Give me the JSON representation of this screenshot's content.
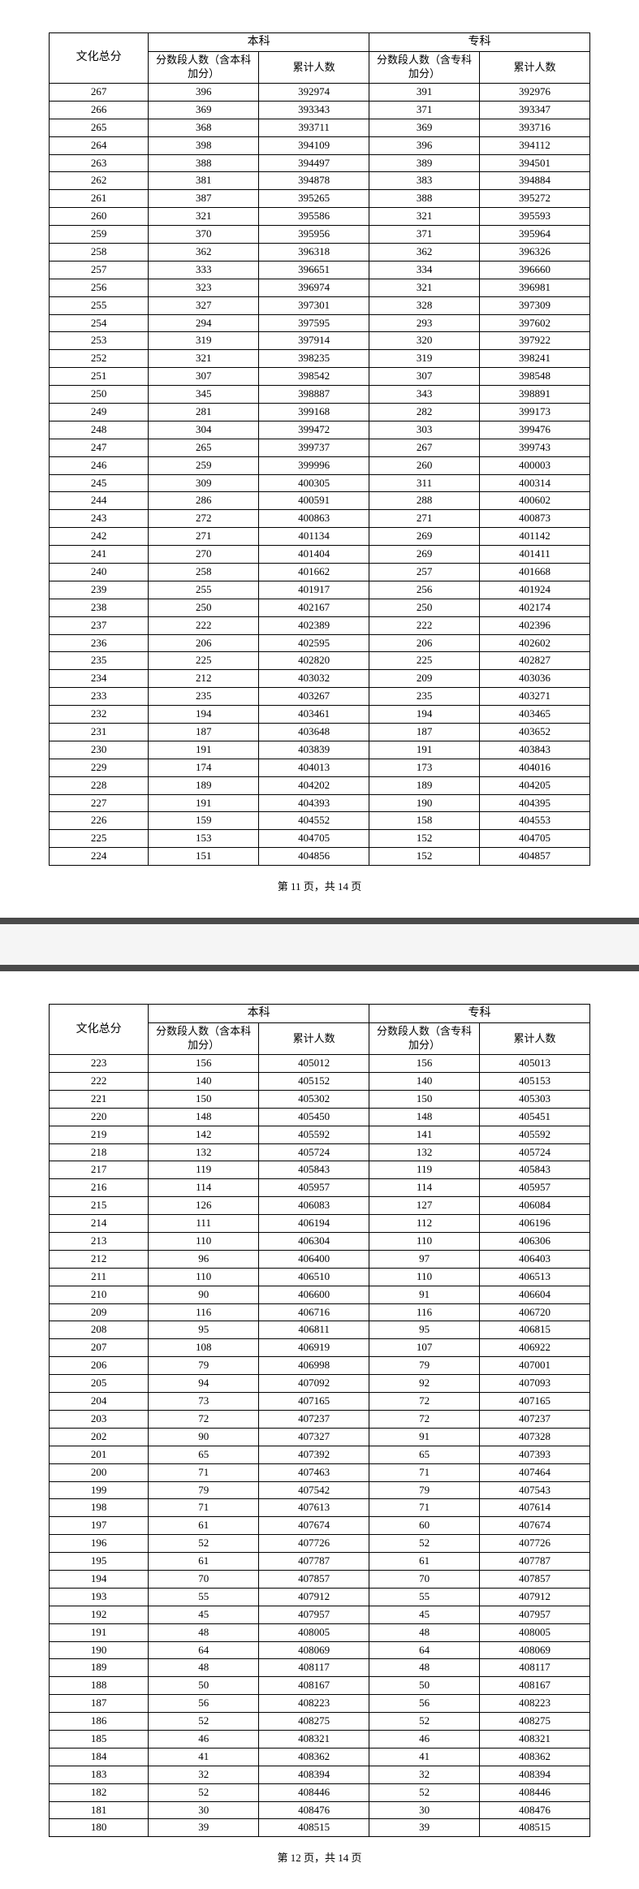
{
  "headers": {
    "score": "文化总分",
    "benke": "本科",
    "zhuanke": "专科",
    "segment_benke": "分数段人数（含本科加分）",
    "segment_zhuanke": "分数段人数（含专科加分）",
    "cumulative": "累计人数"
  },
  "page11": {
    "footer": "第 11 页，共 14 页",
    "rows": [
      [
        267,
        396,
        392974,
        391,
        392976
      ],
      [
        266,
        369,
        393343,
        371,
        393347
      ],
      [
        265,
        368,
        393711,
        369,
        393716
      ],
      [
        264,
        398,
        394109,
        396,
        394112
      ],
      [
        263,
        388,
        394497,
        389,
        394501
      ],
      [
        262,
        381,
        394878,
        383,
        394884
      ],
      [
        261,
        387,
        395265,
        388,
        395272
      ],
      [
        260,
        321,
        395586,
        321,
        395593
      ],
      [
        259,
        370,
        395956,
        371,
        395964
      ],
      [
        258,
        362,
        396318,
        362,
        396326
      ],
      [
        257,
        333,
        396651,
        334,
        396660
      ],
      [
        256,
        323,
        396974,
        321,
        396981
      ],
      [
        255,
        327,
        397301,
        328,
        397309
      ],
      [
        254,
        294,
        397595,
        293,
        397602
      ],
      [
        253,
        319,
        397914,
        320,
        397922
      ],
      [
        252,
        321,
        398235,
        319,
        398241
      ],
      [
        251,
        307,
        398542,
        307,
        398548
      ],
      [
        250,
        345,
        398887,
        343,
        398891
      ],
      [
        249,
        281,
        399168,
        282,
        399173
      ],
      [
        248,
        304,
        399472,
        303,
        399476
      ],
      [
        247,
        265,
        399737,
        267,
        399743
      ],
      [
        246,
        259,
        399996,
        260,
        400003
      ],
      [
        245,
        309,
        400305,
        311,
        400314
      ],
      [
        244,
        286,
        400591,
        288,
        400602
      ],
      [
        243,
        272,
        400863,
        271,
        400873
      ],
      [
        242,
        271,
        401134,
        269,
        401142
      ],
      [
        241,
        270,
        401404,
        269,
        401411
      ],
      [
        240,
        258,
        401662,
        257,
        401668
      ],
      [
        239,
        255,
        401917,
        256,
        401924
      ],
      [
        238,
        250,
        402167,
        250,
        402174
      ],
      [
        237,
        222,
        402389,
        222,
        402396
      ],
      [
        236,
        206,
        402595,
        206,
        402602
      ],
      [
        235,
        225,
        402820,
        225,
        402827
      ],
      [
        234,
        212,
        403032,
        209,
        403036
      ],
      [
        233,
        235,
        403267,
        235,
        403271
      ],
      [
        232,
        194,
        403461,
        194,
        403465
      ],
      [
        231,
        187,
        403648,
        187,
        403652
      ],
      [
        230,
        191,
        403839,
        191,
        403843
      ],
      [
        229,
        174,
        404013,
        173,
        404016
      ],
      [
        228,
        189,
        404202,
        189,
        404205
      ],
      [
        227,
        191,
        404393,
        190,
        404395
      ],
      [
        226,
        159,
        404552,
        158,
        404553
      ],
      [
        225,
        153,
        404705,
        152,
        404705
      ],
      [
        224,
        151,
        404856,
        152,
        404857
      ]
    ]
  },
  "page12": {
    "footer": "第 12 页，共 14 页",
    "rows": [
      [
        223,
        156,
        405012,
        156,
        405013
      ],
      [
        222,
        140,
        405152,
        140,
        405153
      ],
      [
        221,
        150,
        405302,
        150,
        405303
      ],
      [
        220,
        148,
        405450,
        148,
        405451
      ],
      [
        219,
        142,
        405592,
        141,
        405592
      ],
      [
        218,
        132,
        405724,
        132,
        405724
      ],
      [
        217,
        119,
        405843,
        119,
        405843
      ],
      [
        216,
        114,
        405957,
        114,
        405957
      ],
      [
        215,
        126,
        406083,
        127,
        406084
      ],
      [
        214,
        111,
        406194,
        112,
        406196
      ],
      [
        213,
        110,
        406304,
        110,
        406306
      ],
      [
        212,
        96,
        406400,
        97,
        406403
      ],
      [
        211,
        110,
        406510,
        110,
        406513
      ],
      [
        210,
        90,
        406600,
        91,
        406604
      ],
      [
        209,
        116,
        406716,
        116,
        406720
      ],
      [
        208,
        95,
        406811,
        95,
        406815
      ],
      [
        207,
        108,
        406919,
        107,
        406922
      ],
      [
        206,
        79,
        406998,
        79,
        407001
      ],
      [
        205,
        94,
        407092,
        92,
        407093
      ],
      [
        204,
        73,
        407165,
        72,
        407165
      ],
      [
        203,
        72,
        407237,
        72,
        407237
      ],
      [
        202,
        90,
        407327,
        91,
        407328
      ],
      [
        201,
        65,
        407392,
        65,
        407393
      ],
      [
        200,
        71,
        407463,
        71,
        407464
      ],
      [
        199,
        79,
        407542,
        79,
        407543
      ],
      [
        198,
        71,
        407613,
        71,
        407614
      ],
      [
        197,
        61,
        407674,
        60,
        407674
      ],
      [
        196,
        52,
        407726,
        52,
        407726
      ],
      [
        195,
        61,
        407787,
        61,
        407787
      ],
      [
        194,
        70,
        407857,
        70,
        407857
      ],
      [
        193,
        55,
        407912,
        55,
        407912
      ],
      [
        192,
        45,
        407957,
        45,
        407957
      ],
      [
        191,
        48,
        408005,
        48,
        408005
      ],
      [
        190,
        64,
        408069,
        64,
        408069
      ],
      [
        189,
        48,
        408117,
        48,
        408117
      ],
      [
        188,
        50,
        408167,
        50,
        408167
      ],
      [
        187,
        56,
        408223,
        56,
        408223
      ],
      [
        186,
        52,
        408275,
        52,
        408275
      ],
      [
        185,
        46,
        408321,
        46,
        408321
      ],
      [
        184,
        41,
        408362,
        41,
        408362
      ],
      [
        183,
        32,
        408394,
        32,
        408394
      ],
      [
        182,
        52,
        408446,
        52,
        408446
      ],
      [
        181,
        30,
        408476,
        30,
        408476
      ],
      [
        180,
        39,
        408515,
        39,
        408515
      ]
    ]
  }
}
